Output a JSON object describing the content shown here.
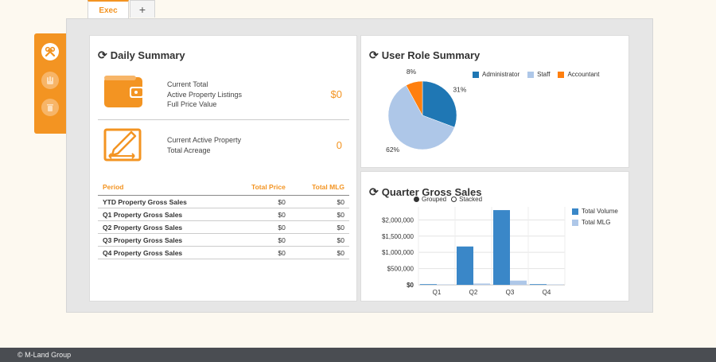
{
  "tabs": {
    "active": "Exec",
    "add": "+"
  },
  "sidebar": {
    "icons": [
      "tools-icon",
      "hand-icon",
      "trash-icon"
    ]
  },
  "daily": {
    "title": "Daily Summary",
    "row1": {
      "lines": [
        "Current Total",
        "Active Property Listings",
        "Full Price Value"
      ],
      "value": "$0"
    },
    "row2": {
      "lines": [
        "Current Active Property",
        "Total Acreage"
      ],
      "value": "0"
    },
    "table": {
      "headers": [
        "Period",
        "Total Price",
        "Total MLG"
      ],
      "rows": [
        [
          "YTD Property Gross Sales",
          "$0",
          "$0"
        ],
        [
          "Q1 Property Gross Sales",
          "$0",
          "$0"
        ],
        [
          "Q2 Property Gross Sales",
          "$0",
          "$0"
        ],
        [
          "Q3 Property Gross Sales",
          "$0",
          "$0"
        ],
        [
          "Q4 Property Gross Sales",
          "$0",
          "$0"
        ]
      ]
    }
  },
  "role": {
    "title": "User Role Summary",
    "colors": [
      "#1f77b4",
      "#aec7e8",
      "#ff7f0e"
    ]
  },
  "quarter": {
    "title": "Quarter Gross Sales",
    "mode": {
      "grouped": "Grouped",
      "stacked": "Stacked",
      "selected": "Grouped"
    },
    "colors": [
      "#3a87c8",
      "#aec7e8"
    ]
  },
  "footer": {
    "text": "© M-Land Group"
  },
  "chart_data": [
    {
      "type": "pie",
      "categories": [
        "Administrator",
        "Staff",
        "Accountant"
      ],
      "values": [
        31,
        62,
        8
      ],
      "labels": [
        "31%",
        "62%",
        "8%"
      ],
      "legend": "top-right"
    },
    {
      "type": "bar",
      "categories": [
        "Q1",
        "Q2",
        "Q3",
        "Q4"
      ],
      "series": [
        {
          "name": "Total Volume",
          "values": [
            20000,
            1180000,
            2300000,
            20000
          ]
        },
        {
          "name": "Total MLG",
          "values": [
            10000,
            40000,
            130000,
            10000
          ]
        }
      ],
      "yticks": [
        "$0",
        "$500,000",
        "$1,000,000",
        "$1,500,000",
        "$2,000,000"
      ],
      "ylim": [
        0,
        2400000
      ],
      "grid": true,
      "legend": "right"
    }
  ]
}
